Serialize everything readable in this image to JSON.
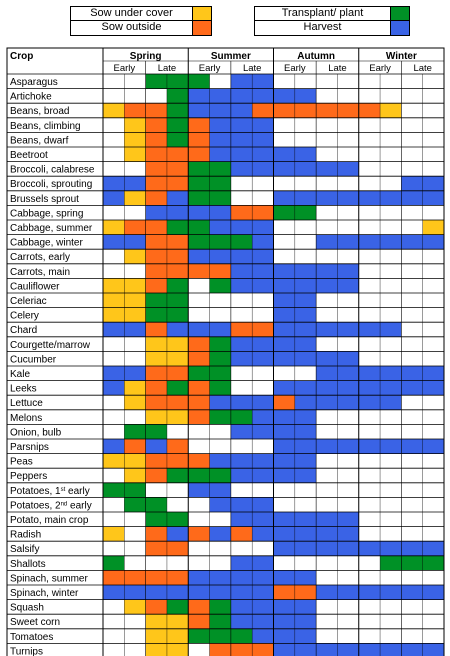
{
  "legend": {
    "sow_under_cover": "Sow under cover",
    "sow_outside": "Sow outside",
    "transplant": "Transplant/ plant",
    "harvest": "Harvest"
  },
  "colors": {
    "U": "#ffc61a",
    "O": "#ff6a1a",
    "T": "#009126",
    "H": "#3a63e6",
    "empty": "#ffffff"
  },
  "table": {
    "crop_header": "Crop",
    "seasons": [
      "Spring",
      "Summer",
      "Autumn",
      "Winter"
    ],
    "subheaders": [
      "Early",
      "Late",
      "Early",
      "Late",
      "Early",
      "Late",
      "Early",
      "Late"
    ],
    "crops": [
      {
        "name": "Asparagus",
        "cells": [
          "-",
          "TT",
          "T-",
          "HH",
          "--",
          "--",
          "--",
          "--"
        ]
      },
      {
        "name": "Artichoke",
        "cells": [
          "--",
          "-T",
          "HH",
          "HH",
          "HH",
          "--",
          "--",
          "--"
        ]
      },
      {
        "name": "Beans, broad",
        "cells": [
          "UO",
          "OT",
          "HH",
          "HO",
          "OO",
          "OO",
          "OU",
          "--"
        ]
      },
      {
        "name": "Beans, climbing",
        "cells": [
          "-U",
          "OT",
          "OH",
          "HH",
          "--",
          "--",
          "--",
          "--"
        ]
      },
      {
        "name": "Beans, dwarf",
        "cells": [
          "-U",
          "OT",
          "OH",
          "HH",
          "--",
          "--",
          "--",
          "--"
        ]
      },
      {
        "name": "Beetroot",
        "cells": [
          "-U",
          "OO",
          "OH",
          "HH",
          "HH",
          "--",
          "--",
          "--"
        ]
      },
      {
        "name": "Broccoli, calabrese",
        "cells": [
          "--",
          "OO",
          "TT",
          "HH",
          "HH",
          "HH",
          "--",
          "--"
        ]
      },
      {
        "name": "Broccoli, sprouting",
        "cells": [
          "HH",
          "OO",
          "TT",
          "--",
          "--",
          "--",
          "--",
          "HH"
        ]
      },
      {
        "name": "Brussels sprout",
        "cells": [
          "HU",
          "OH",
          "TT",
          "--",
          "HH",
          "HH",
          "HH",
          "HH"
        ]
      },
      {
        "name": "Cabbage, spring",
        "cells": [
          "--",
          "HH",
          "HH",
          "OO",
          "TT",
          "--",
          "--",
          "--"
        ]
      },
      {
        "name": "Cabbage, summer",
        "cells": [
          "UO",
          "OT",
          "TH",
          "HH",
          "--",
          "--",
          "--",
          "-U"
        ]
      },
      {
        "name": "Cabbage, winter",
        "cells": [
          "HH",
          "OO",
          "TT",
          "TH",
          "--",
          "HH",
          "HH",
          "HH"
        ]
      },
      {
        "name": "Carrots, early",
        "cells": [
          "-U",
          "OO",
          "HH",
          "HH",
          "--",
          "--",
          "--",
          "--"
        ]
      },
      {
        "name": "Carrots, main",
        "cells": [
          "--",
          "OO",
          "OO",
          "HH",
          "HH",
          "HH",
          "--",
          "--"
        ]
      },
      {
        "name": "Cauliflower",
        "cells": [
          "UU",
          "OT",
          "-T",
          "HH",
          "HH",
          "HH",
          "--",
          "--"
        ]
      },
      {
        "name": "Celeriac",
        "cells": [
          "UU",
          "TT",
          "--",
          "--",
          "HH",
          "--",
          "--",
          "--"
        ]
      },
      {
        "name": "Celery",
        "cells": [
          "UU",
          "TT",
          "--",
          "--",
          "HH",
          "--",
          "--",
          "--"
        ]
      },
      {
        "name": "Chard",
        "cells": [
          "HH",
          "OH",
          "HH",
          "OO",
          "HH",
          "HH",
          "HH",
          "--"
        ]
      },
      {
        "name": "Courgette/marrow",
        "cells": [
          "--",
          "UU",
          "OT",
          "HH",
          "HH",
          "--",
          "--",
          "--"
        ]
      },
      {
        "name": "Cucumber",
        "cells": [
          "--",
          "UU",
          "OT",
          "HH",
          "HH",
          "HH",
          "--",
          "--"
        ]
      },
      {
        "name": "Kale",
        "cells": [
          "HH",
          "OO",
          "TT",
          "--",
          "--",
          "HH",
          "HH",
          "HH"
        ]
      },
      {
        "name": "Leeks",
        "cells": [
          "HU",
          "OT",
          "OT",
          "--",
          "HH",
          "HH",
          "HH",
          "HH"
        ]
      },
      {
        "name": "Lettuce",
        "cells": [
          "-U",
          "OO",
          "OH",
          "HH",
          "OH",
          "HH",
          "HH",
          "--"
        ]
      },
      {
        "name": "Melons",
        "cells": [
          "--",
          "UU",
          "OT",
          "TH",
          "HH",
          "--",
          "--",
          "--"
        ]
      },
      {
        "name": "Onion, bulb",
        "cells": [
          "-T",
          "T-",
          "--",
          "HH",
          "HH",
          "--",
          "--",
          "--"
        ]
      },
      {
        "name": "Parsnips",
        "cells": [
          "HO",
          "HO",
          "--",
          "--",
          "HH",
          "HH",
          "HH",
          "HH"
        ]
      },
      {
        "name": "Peas",
        "cells": [
          "UU",
          "OO",
          "OH",
          "HH",
          "HH",
          "--",
          "--",
          "--"
        ]
      },
      {
        "name": "Peppers",
        "cells": [
          "-U",
          "OT",
          "TT",
          "HH",
          "HH",
          "--",
          "--",
          "--"
        ]
      },
      {
        "name": "Potatoes, 1st early",
        "cells": [
          "TT",
          "--",
          "HH",
          "--",
          "--",
          "--",
          "--",
          "--"
        ]
      },
      {
        "name": "Potatoes, 2nd early",
        "cells": [
          "-T",
          "T-",
          "-H",
          "HH",
          "--",
          "--",
          "--",
          "--"
        ]
      },
      {
        "name": "Potato, main crop",
        "cells": [
          "--",
          "TT",
          "--",
          "HH",
          "HH",
          "HH",
          "--",
          "--"
        ]
      },
      {
        "name": "Radish",
        "cells": [
          "U-",
          "OH",
          "OH",
          "OH",
          "HH",
          "HH",
          "--",
          "--"
        ]
      },
      {
        "name": "Salsify",
        "cells": [
          "--",
          "OO",
          "--",
          "--",
          "HH",
          "HH",
          "HH",
          "HH"
        ]
      },
      {
        "name": "Shallots",
        "cells": [
          "T-",
          "--",
          "--",
          "HH",
          "--",
          "--",
          "-T",
          "TT"
        ]
      },
      {
        "name": "Spinach, summer",
        "cells": [
          "OO",
          "OO",
          "HH",
          "HH",
          "HH",
          "--",
          "--",
          "--"
        ]
      },
      {
        "name": "Spinach, winter",
        "cells": [
          "HH",
          "HH",
          "HH",
          "HH",
          "OO",
          "HH",
          "HH",
          "HH"
        ]
      },
      {
        "name": "Squash",
        "cells": [
          "-U",
          "OT",
          "OT",
          "HH",
          "HH",
          "--",
          "--",
          "--"
        ]
      },
      {
        "name": "Sweet corn",
        "cells": [
          "--",
          "UU",
          "OT",
          "HH",
          "HH",
          "--",
          "--",
          "--"
        ]
      },
      {
        "name": "Tomatoes",
        "cells": [
          "--",
          "UU",
          "TT",
          "TH",
          "HH",
          "--",
          "--",
          "--"
        ]
      },
      {
        "name": "Turnips",
        "cells": [
          "--",
          "UU",
          "-O",
          "OO",
          "HH",
          "HH",
          "HH",
          "HH"
        ]
      }
    ]
  }
}
